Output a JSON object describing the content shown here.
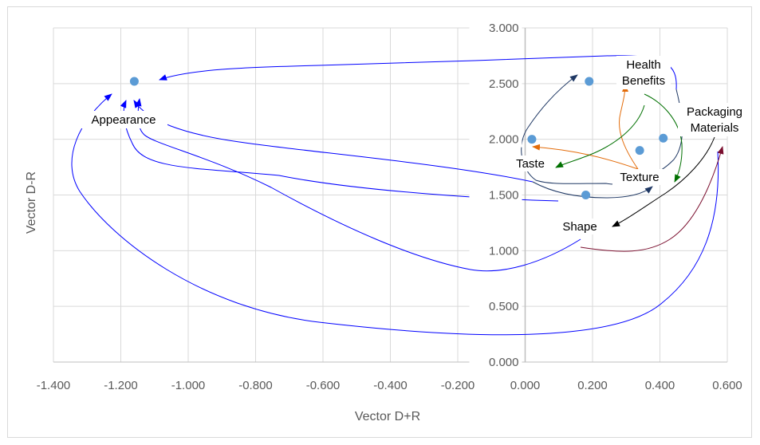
{
  "chart_data": {
    "type": "scatter",
    "title": "",
    "xlabel": "Vector D+R",
    "ylabel": "Vector D-R",
    "xlim": [
      -1.4,
      0.6
    ],
    "ylim": [
      0.0,
      3.0
    ],
    "x_ticks": [
      "-1.400",
      "-1.200",
      "-1.000",
      "-0.800",
      "-0.600",
      "-0.400",
      "-0.200",
      "0.000",
      "0.200",
      "0.400",
      "0.600"
    ],
    "y_ticks": [
      "0.000",
      "0.500",
      "1.000",
      "1.500",
      "2.000",
      "2.500",
      "3.000"
    ],
    "grid": true,
    "legend": "none",
    "marker_color": "#5b9bd5",
    "points": [
      {
        "x": -1.16,
        "y": 2.52
      },
      {
        "x": 0.02,
        "y": 2.0
      },
      {
        "x": 0.19,
        "y": 2.52
      },
      {
        "x": 0.34,
        "y": 1.9
      },
      {
        "x": 0.41,
        "y": 2.01
      },
      {
        "x": 0.18,
        "y": 1.5
      }
    ],
    "annotations": [
      {
        "lines": [
          "Appearance"
        ]
      },
      {
        "lines": [
          "Health",
          "Benefits"
        ]
      },
      {
        "lines": [
          "Packaging",
          "Materials"
        ]
      },
      {
        "lines": [
          "Taste"
        ]
      },
      {
        "lines": [
          "Texture"
        ]
      },
      {
        "lines": [
          "Shape"
        ]
      }
    ],
    "arrow_colors": {
      "blue": "#0000ff",
      "navy": "#1f3864",
      "orange": "#e36c0a",
      "green": "#007000",
      "black": "#000000",
      "maroon": "#7a0e2e"
    }
  }
}
